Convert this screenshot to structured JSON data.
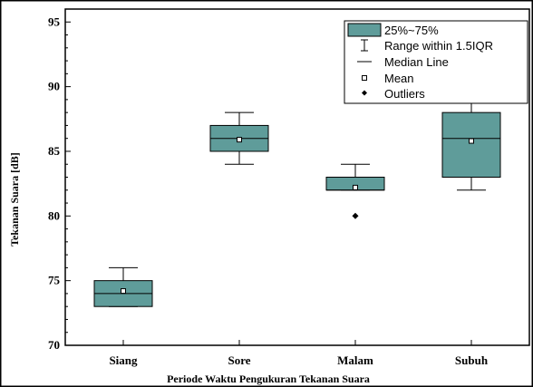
{
  "chart_data": {
    "type": "box",
    "title": "",
    "xlabel": "Periode Waktu Pengukuran Tekanan Suara",
    "ylabel": "Tekanan Suara [dB]",
    "ylim": [
      70,
      96
    ],
    "yticks": [
      70,
      75,
      80,
      85,
      90,
      95
    ],
    "categories": [
      "Siang",
      "Sore",
      "Malam",
      "Subuh"
    ],
    "boxes": [
      {
        "category": "Siang",
        "whisker_low": 73,
        "q1": 73,
        "median": 74,
        "q3": 75,
        "whisker_high": 76,
        "mean": 74.2,
        "outliers": []
      },
      {
        "category": "Sore",
        "whisker_low": 84,
        "q1": 85,
        "median": 86,
        "q3": 87,
        "whisker_high": 88,
        "mean": 85.9,
        "outliers": []
      },
      {
        "category": "Malam",
        "whisker_low": 82,
        "q1": 82,
        "median": 82,
        "q3": 83,
        "whisker_high": 84,
        "mean": 82.2,
        "outliers": [
          80
        ]
      },
      {
        "category": "Subuh",
        "whisker_low": 82,
        "q1": 83,
        "median": 86,
        "q3": 88,
        "whisker_high": 90,
        "mean": 85.8,
        "outliers": []
      }
    ],
    "legend": {
      "placement": "top-right",
      "entries": [
        "25%~75%",
        "Range within 1.5IQR",
        "Median Line",
        "Mean",
        "Outliers"
      ]
    },
    "colors": {
      "box_fill": "#5f9c9a",
      "stroke": "#000000"
    },
    "grid": false
  }
}
